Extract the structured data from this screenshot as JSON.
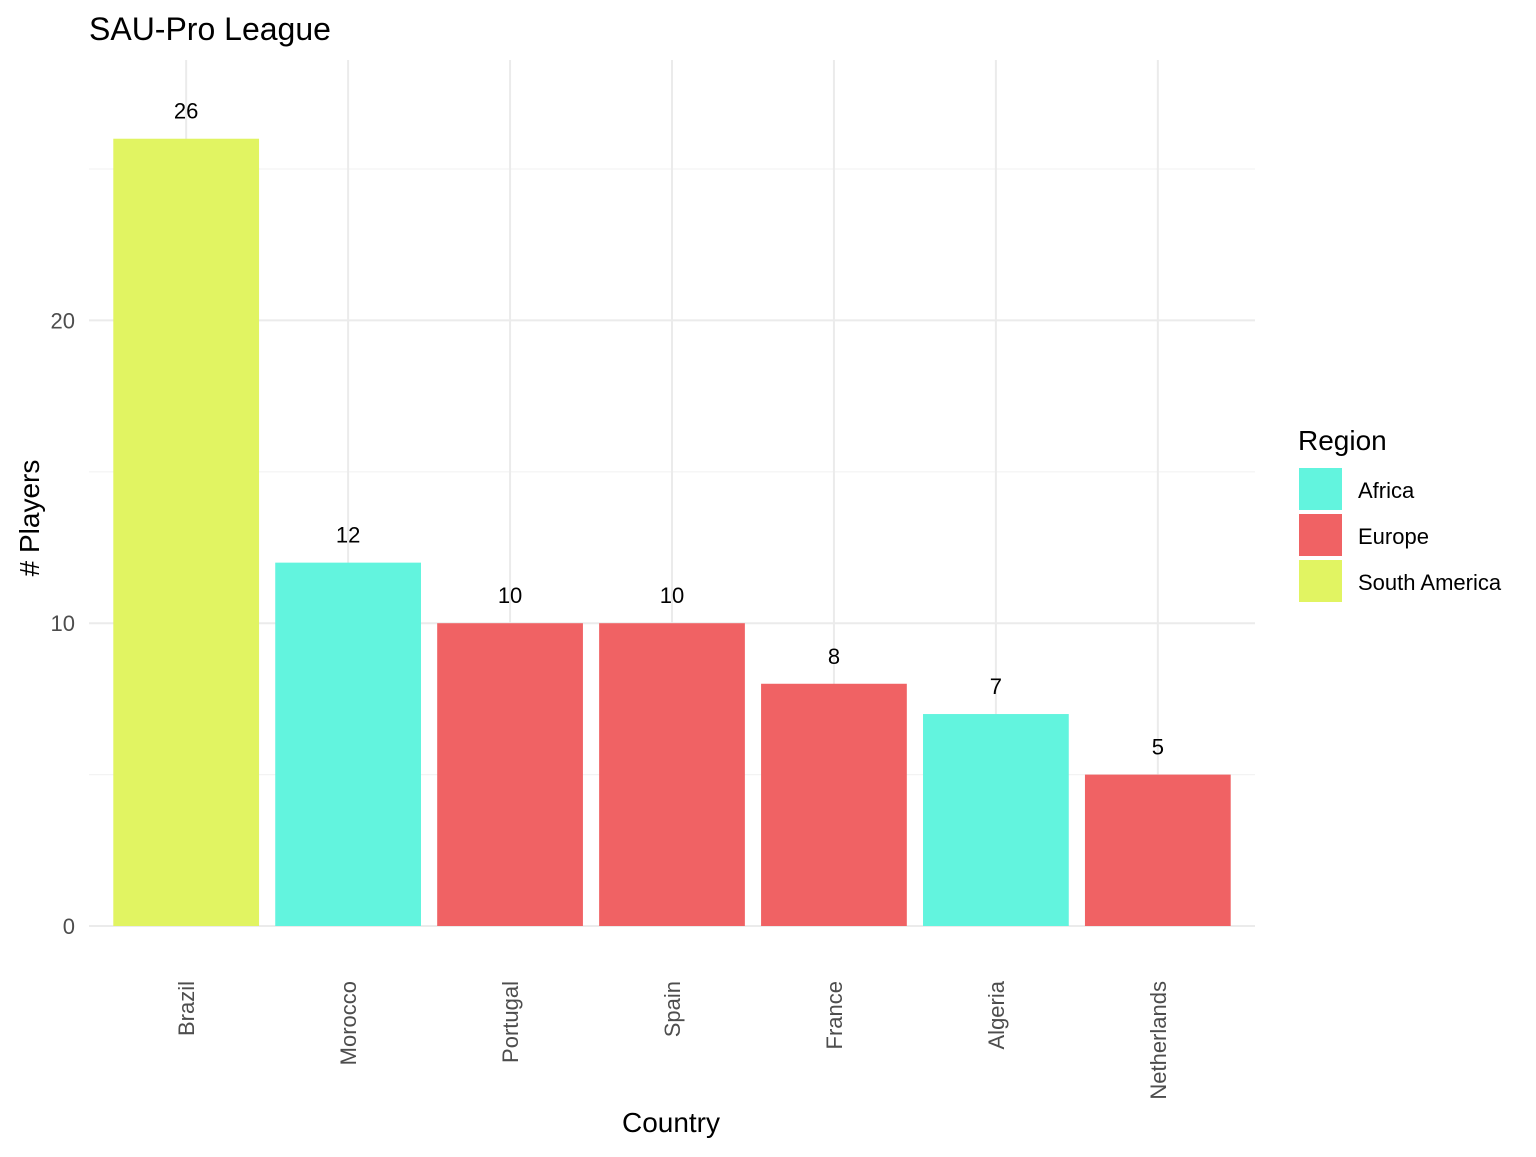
{
  "chart_data": {
    "type": "bar",
    "title": "SAU-Pro League",
    "xlabel": "Country",
    "ylabel": "# Players",
    "categories": [
      "Brazil",
      "Morocco",
      "Portugal",
      "Spain",
      "France",
      "Algeria",
      "Netherlands"
    ],
    "values": [
      26,
      12,
      10,
      10,
      8,
      7,
      5
    ],
    "regions": [
      "South America",
      "Africa",
      "Europe",
      "Europe",
      "Europe",
      "Africa",
      "Europe"
    ],
    "data_labels": [
      "26",
      "12",
      "10",
      "10",
      "8",
      "7",
      "5"
    ],
    "ylim": [
      0,
      28.6
    ],
    "yticks": [
      0,
      10,
      20
    ],
    "ytick_labels": [
      "0",
      "10",
      "20"
    ],
    "grid": true,
    "legend": {
      "title": "Region",
      "placement": "right",
      "entries": [
        {
          "label": "Africa",
          "color": "#62F4DE"
        },
        {
          "label": "Europe",
          "color": "#F06264"
        },
        {
          "label": "South America",
          "color": "#E1F462"
        }
      ]
    }
  }
}
